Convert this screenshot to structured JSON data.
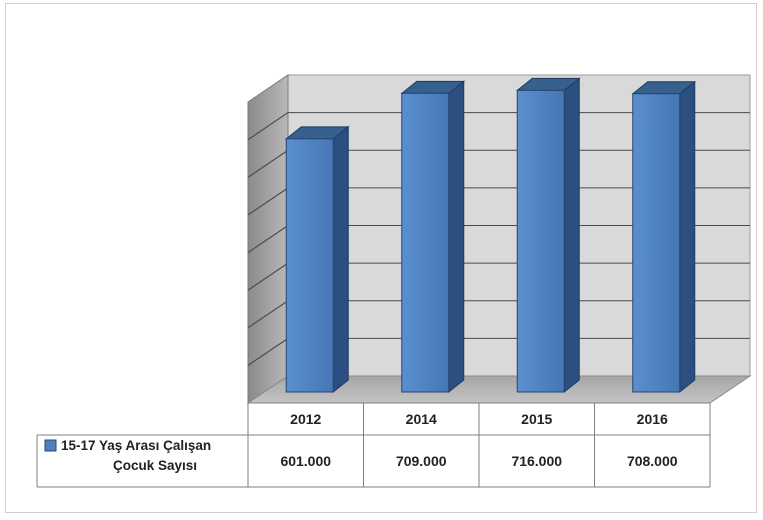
{
  "chart_data": {
    "type": "bar",
    "categories": [
      "2012",
      "2014",
      "2015",
      "2016"
    ],
    "series": [
      {
        "name": "15-17 Yaş Arası Çalışan Çocuk Sayısı",
        "legend_lines": [
          "15-17 Yaş Arası Çalışan",
          "Çocuk Sayısı"
        ],
        "values": [
          601000,
          709000,
          716000,
          708000
        ],
        "value_labels": [
          "601.000",
          "709.000",
          "716.000",
          "708.000"
        ],
        "color": "#4f81bd"
      }
    ],
    "title": "",
    "xlabel": "",
    "ylabel": "",
    "grid": true,
    "legend": "data-table",
    "three_d": true
  }
}
